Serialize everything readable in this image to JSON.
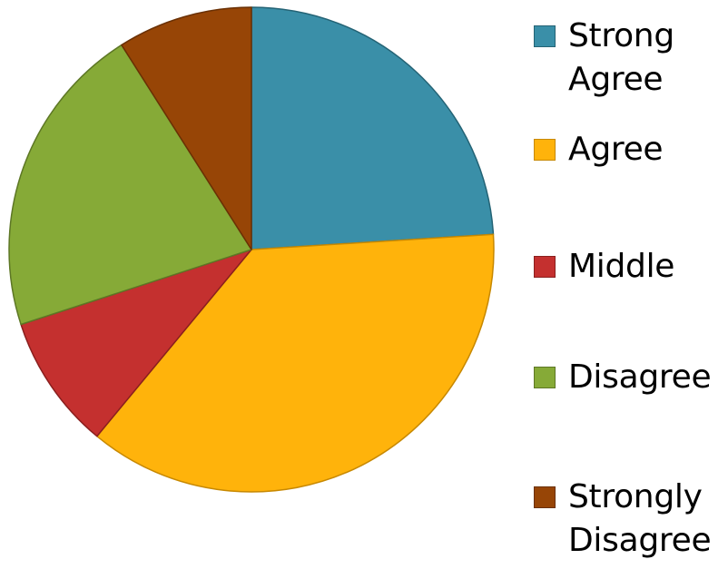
{
  "chart_data": {
    "type": "pie",
    "title": "",
    "categories": [
      "Strong Agree",
      "Agree",
      "Middle",
      "Disagree",
      "Strongly Disagree"
    ],
    "values": [
      24,
      37,
      9,
      21,
      9
    ],
    "colors": [
      "#3A8FA8",
      "#FFB30B",
      "#C4302F",
      "#86AA37",
      "#974506"
    ],
    "border_colors": [
      "#246375",
      "#C78800",
      "#8A1F1E",
      "#5D7725",
      "#6A3004"
    ],
    "start_angle_deg": 0,
    "direction": "clockwise",
    "legend": {
      "position": "right",
      "entries": [
        {
          "label": "Strong Agree",
          "color": "#3A8FA8"
        },
        {
          "label": "Agree",
          "color": "#FFB30B"
        },
        {
          "label": "Middle",
          "color": "#C4302F"
        },
        {
          "label": "Disagree",
          "color": "#86AA37"
        },
        {
          "label": "Strongly Disagree",
          "color": "#974506"
        }
      ]
    }
  }
}
